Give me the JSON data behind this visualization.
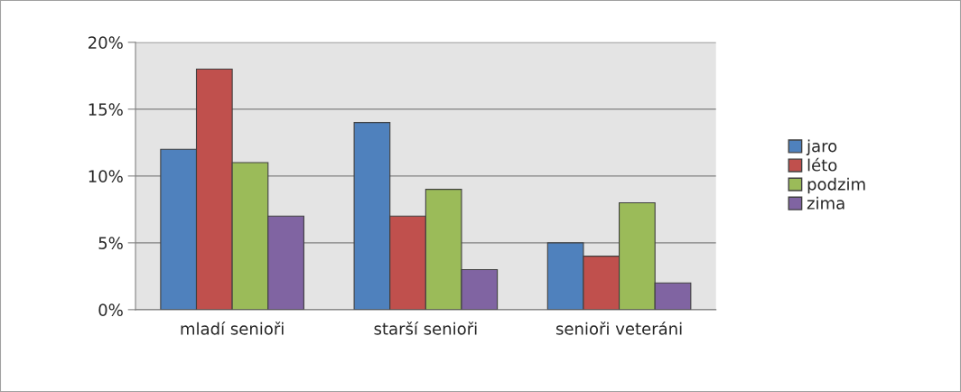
{
  "chart_data": {
    "type": "bar",
    "categories": [
      "mladí senioři",
      "starší senioři",
      "senioři veteráni"
    ],
    "series": [
      {
        "name": "jaro",
        "color": "#4f81bd",
        "values": [
          12,
          14,
          5
        ]
      },
      {
        "name": "léto",
        "color": "#c0504d",
        "values": [
          18,
          7,
          4
        ]
      },
      {
        "name": "podzim",
        "color": "#9bbb59",
        "values": [
          11,
          9,
          8
        ]
      },
      {
        "name": "zima",
        "color": "#8064a2",
        "values": [
          7,
          3,
          2
        ]
      }
    ],
    "ylim": [
      0,
      20
    ],
    "yticks": [
      {
        "value": 0,
        "label": "0%"
      },
      {
        "value": 5,
        "label": "5%"
      },
      {
        "value": 10,
        "label": "10%"
      },
      {
        "value": 15,
        "label": "15%"
      },
      {
        "value": 20,
        "label": "20%"
      }
    ],
    "grid": "y",
    "legend": "right"
  }
}
